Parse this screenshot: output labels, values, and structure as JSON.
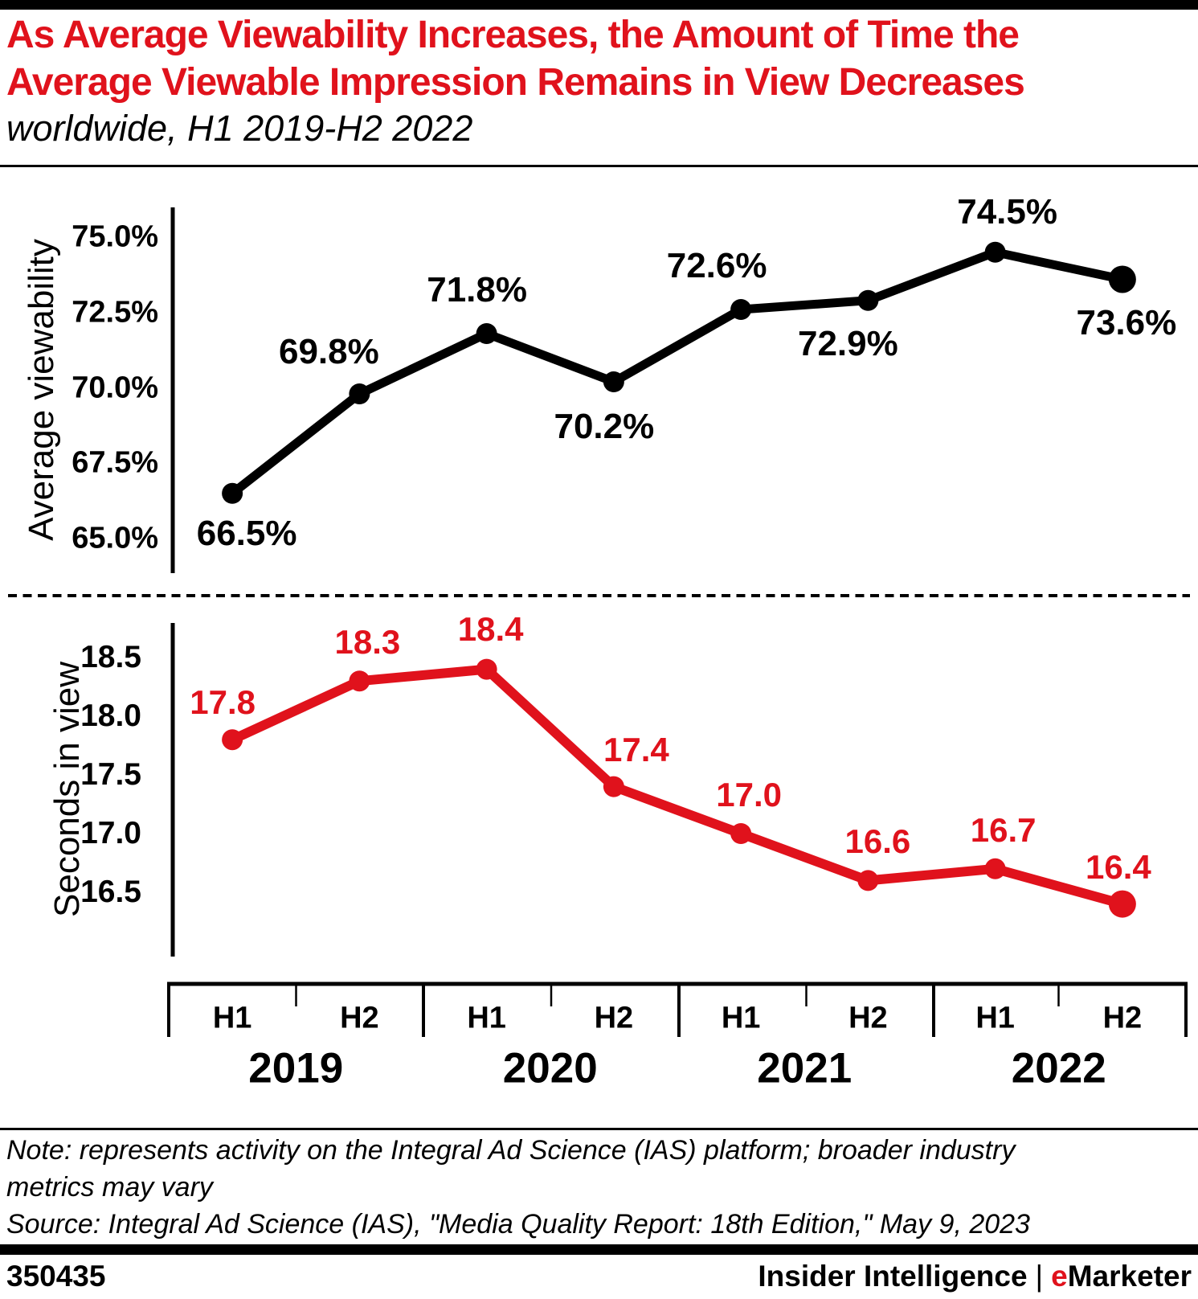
{
  "header": {
    "title_lines": [
      "As Average Viewability Increases, the Amount of Time the",
      "Average Viewable Impression Remains in View Decreases"
    ],
    "subtitle": "worldwide, H1 2019-H2 2022"
  },
  "colors": {
    "accent_red": "#e0121c",
    "black": "#000000"
  },
  "chart_data": [
    {
      "type": "line",
      "name": "average-viewability",
      "ylabel": "Average viewability",
      "series_color": "#000000",
      "categories": [
        "H1 2019",
        "H2 2019",
        "H1 2020",
        "H2 2020",
        "H1 2021",
        "H2 2021",
        "H1 2022",
        "H2 2022"
      ],
      "values": [
        66.5,
        69.8,
        71.8,
        70.2,
        72.6,
        72.9,
        74.5,
        73.6
      ],
      "labels": [
        "66.5%",
        "69.8%",
        "71.8%",
        "70.2%",
        "72.6%",
        "72.9%",
        "74.5%",
        "73.6%"
      ],
      "yticks": [
        75.0,
        72.5,
        70.0,
        67.5,
        65.0
      ],
      "ytick_labels": [
        "75.0%",
        "72.5%",
        "70.0%",
        "67.5%",
        "65.0%"
      ],
      "ylim": [
        64.0,
        75.6
      ],
      "grid": false,
      "legend": "none"
    },
    {
      "type": "line",
      "name": "seconds-in-view",
      "ylabel": "Seconds in view",
      "series_color": "#e0121c",
      "categories": [
        "H1 2019",
        "H2 2019",
        "H1 2020",
        "H2 2020",
        "H1 2021",
        "H2 2021",
        "H1 2022",
        "H2 2022"
      ],
      "values": [
        17.8,
        18.3,
        18.4,
        17.4,
        17.0,
        16.6,
        16.7,
        16.4
      ],
      "labels": [
        "17.8",
        "18.3",
        "18.4",
        "17.4",
        "17.0",
        "16.6",
        "16.7",
        "16.4"
      ],
      "yticks": [
        18.5,
        18.0,
        17.5,
        17.0,
        16.5
      ],
      "ytick_labels": [
        "18.5",
        "18.0",
        "17.5",
        "17.0",
        "16.5"
      ],
      "ylim": [
        16.0,
        18.75
      ],
      "grid": false,
      "legend": "none"
    }
  ],
  "xaxis": {
    "groups": [
      {
        "year": "2019",
        "halves": [
          "H1",
          "H2"
        ]
      },
      {
        "year": "2020",
        "halves": [
          "H1",
          "H2"
        ]
      },
      {
        "year": "2021",
        "halves": [
          "H1",
          "H2"
        ]
      },
      {
        "year": "2022",
        "halves": [
          "H1",
          "H2"
        ]
      }
    ]
  },
  "footnote": {
    "note_lines": [
      "Note: represents activity on the Integral Ad Science (IAS) platform; broader industry",
      "metrics may vary"
    ],
    "source": "Source: Integral Ad Science (IAS), \"Media Quality Report: 18th Edition,\" May 9, 2023"
  },
  "footer": {
    "chart_id": "350435",
    "brand_left": "Insider Intelligence",
    "separator": "|",
    "brand_red_letter": "e",
    "brand_rest": "Marketer"
  }
}
